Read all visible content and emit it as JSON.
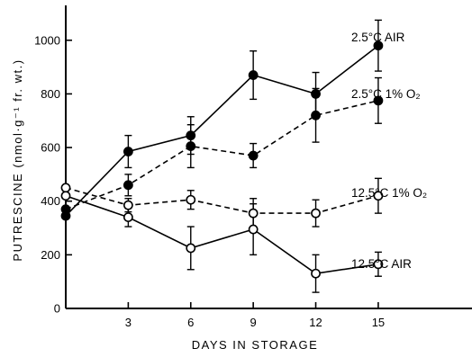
{
  "chart_data": {
    "type": "line",
    "xlabel": "DAYS IN STORAGE",
    "ylabel": "PUTRESCINE (nmol·g⁻¹ fr. wt.)",
    "xlim": [
      0,
      19.5
    ],
    "ylim": [
      0,
      1130
    ],
    "x_ticks": [
      3,
      6,
      9,
      12,
      15
    ],
    "y_ticks": [
      0,
      200,
      400,
      600,
      800,
      1000
    ],
    "grid": false,
    "legend": "labels at line ends (right)",
    "series": [
      {
        "name": "2.5°C AIR",
        "marker": "filled",
        "linestyle": "solid",
        "x": [
          0,
          3,
          6,
          9,
          12,
          15
        ],
        "y": [
          345,
          585,
          645,
          870,
          800,
          980
        ],
        "err": [
          0,
          60,
          70,
          90,
          80,
          95
        ]
      },
      {
        "name": "2.5°C 1% O₂",
        "marker": "filled",
        "linestyle": "dashed",
        "x": [
          0,
          3,
          6,
          9,
          12,
          15
        ],
        "y": [
          370,
          460,
          605,
          570,
          720,
          775
        ],
        "err": [
          0,
          40,
          80,
          45,
          100,
          85
        ]
      },
      {
        "name": "12.5°C 1% O₂",
        "marker": "open",
        "linestyle": "dashed",
        "x": [
          0,
          3,
          6,
          9,
          12,
          15
        ],
        "y": [
          450,
          385,
          405,
          355,
          355,
          420
        ],
        "err": [
          0,
          25,
          35,
          55,
          50,
          65
        ]
      },
      {
        "name": "12.5°C AIR",
        "marker": "open",
        "linestyle": "solid",
        "x": [
          0,
          3,
          6,
          9,
          12,
          15
        ],
        "y": [
          420,
          340,
          225,
          295,
          130,
          165
        ],
        "err": [
          0,
          35,
          80,
          95,
          70,
          45
        ]
      }
    ]
  }
}
